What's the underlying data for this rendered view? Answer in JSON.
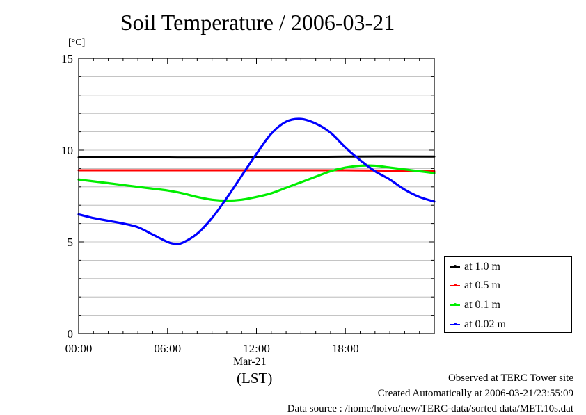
{
  "title": "Soil Temperature / 2006-03-21",
  "unit": "[°C]",
  "x_date_label": "Mar-21",
  "x_axis_label": "(LST)",
  "footer": {
    "line1": "Observed at TERC Tower site",
    "line2": "Created Automatically at 2006-03-21/23:55:09",
    "line3": "Data source : /home/hoivo/new/TERC-data/sorted  data/MET.10s.dat"
  },
  "chart_data": {
    "type": "line",
    "title": "Soil Temperature / 2006-03-21",
    "xlabel": "(LST)",
    "ylabel": "[°C]",
    "xlim": [
      0,
      24
    ],
    "ylim": [
      0,
      15
    ],
    "xticks": [
      {
        "value": 0,
        "label": "00:00"
      },
      {
        "value": 6,
        "label": "06:00"
      },
      {
        "value": 12,
        "label": "12:00"
      },
      {
        "value": 18,
        "label": "18:00"
      }
    ],
    "yticks": [
      {
        "value": 0,
        "label": "0"
      },
      {
        "value": 5,
        "label": "5"
      },
      {
        "value": 10,
        "label": "10"
      },
      {
        "value": 15,
        "label": "15"
      }
    ],
    "grid": true,
    "legend_position": "bottom-right outside",
    "series": [
      {
        "name": "at 1.0 m",
        "color": "#000000",
        "x": [
          0,
          6,
          12,
          18,
          24
        ],
        "y": [
          9.6,
          9.6,
          9.6,
          9.65,
          9.65
        ]
      },
      {
        "name": "at 0.5 m",
        "color": "#ff0000",
        "x": [
          0,
          6,
          12,
          18,
          24
        ],
        "y": [
          8.9,
          8.9,
          8.9,
          8.9,
          8.85
        ]
      },
      {
        "name": "at 0.1 m",
        "color": "#00ee00",
        "x": [
          0,
          1,
          2,
          3,
          4,
          5,
          6,
          7,
          8,
          9,
          10,
          11,
          12,
          13,
          14,
          15,
          16,
          17,
          18,
          19,
          20,
          21,
          22,
          23,
          24
        ],
        "y": [
          8.4,
          8.3,
          8.2,
          8.1,
          8.0,
          7.9,
          7.8,
          7.65,
          7.45,
          7.3,
          7.25,
          7.3,
          7.45,
          7.65,
          7.95,
          8.25,
          8.55,
          8.85,
          9.05,
          9.15,
          9.15,
          9.05,
          8.95,
          8.85,
          8.75
        ]
      },
      {
        "name": "at 0.02 m",
        "color": "#0000ff",
        "x": [
          0,
          1,
          2,
          3,
          4,
          5,
          6,
          6.5,
          7,
          8,
          9,
          10,
          11,
          12,
          13,
          14,
          15,
          16,
          17,
          18,
          19,
          20,
          21,
          22,
          23,
          24
        ],
        "y": [
          6.5,
          6.3,
          6.15,
          6.0,
          5.8,
          5.4,
          5.0,
          4.9,
          4.95,
          5.45,
          6.3,
          7.4,
          8.6,
          9.8,
          10.9,
          11.55,
          11.7,
          11.45,
          10.95,
          10.15,
          9.45,
          8.85,
          8.4,
          7.85,
          7.45,
          7.2
        ]
      }
    ]
  }
}
